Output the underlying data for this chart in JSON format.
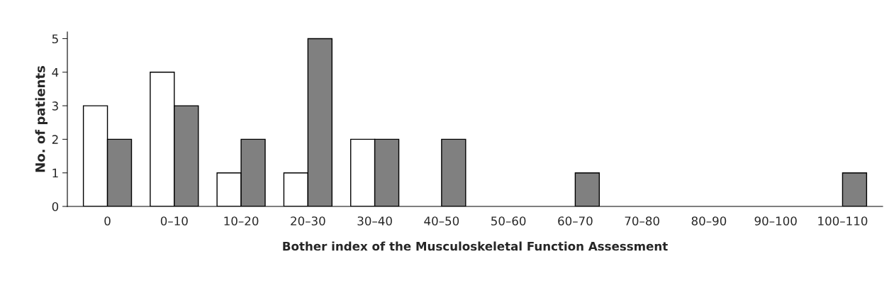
{
  "chart_data": {
    "type": "bar",
    "xlabel": "Bother index of the Musculoskeletal Function Assessment",
    "ylabel": "No. of patients",
    "categories": [
      "0",
      "0–10",
      "10–20",
      "20–30",
      "30–40",
      "40–50",
      "50–60",
      "60–70",
      "70–80",
      "80–90",
      "90–100",
      "100–110"
    ],
    "series": [
      {
        "color": "#ffffff",
        "values": [
          3,
          4,
          1,
          1,
          2,
          0,
          0,
          0,
          0,
          0,
          0,
          0
        ]
      },
      {
        "color": "#808080",
        "values": [
          2,
          3,
          2,
          5,
          2,
          2,
          0,
          1,
          0,
          0,
          0,
          1
        ]
      }
    ],
    "ylim": [
      0,
      5.2
    ],
    "yticks": [
      0,
      1,
      2,
      3,
      4,
      5
    ],
    "grid": false,
    "legend": false
  }
}
